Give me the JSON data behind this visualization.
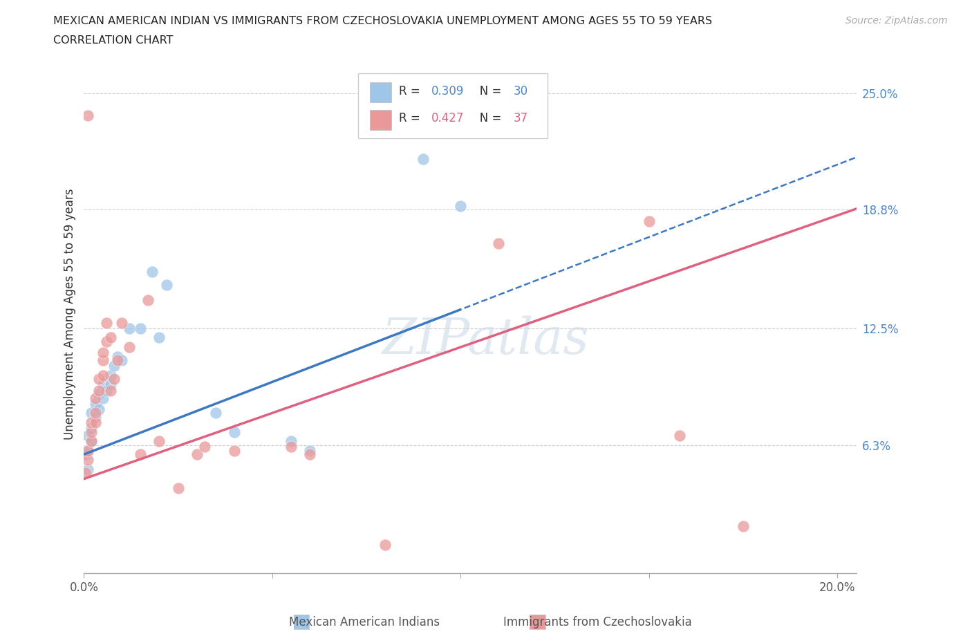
{
  "title_line1": "MEXICAN AMERICAN INDIAN VS IMMIGRANTS FROM CZECHOSLOVAKIA UNEMPLOYMENT AMONG AGES 55 TO 59 YEARS",
  "title_line2": "CORRELATION CHART",
  "source_text": "Source: ZipAtlas.com",
  "ylabel": "Unemployment Among Ages 55 to 59 years",
  "xlim": [
    0.0,
    0.205
  ],
  "ylim": [
    -0.005,
    0.27
  ],
  "ytick_positions": [
    0.063,
    0.125,
    0.188,
    0.25
  ],
  "ytick_labels": [
    "6.3%",
    "12.5%",
    "18.8%",
    "25.0%"
  ],
  "blue_color": "#9fc5e8",
  "pink_color": "#ea9999",
  "blue_line_color": "#3d78c3",
  "pink_line_color": "#e06080",
  "blue_R": 0.309,
  "blue_N": 30,
  "pink_R": 0.427,
  "pink_N": 37,
  "legend_label_blue": "Mexican American Indians",
  "legend_label_pink": "Immigrants from Czechoslovakia",
  "blue_x": [
    0.0005,
    0.001,
    0.001,
    0.001,
    0.002,
    0.002,
    0.002,
    0.003,
    0.003,
    0.004,
    0.004,
    0.005,
    0.005,
    0.006,
    0.007,
    0.007,
    0.008,
    0.009,
    0.01,
    0.012,
    0.015,
    0.018,
    0.02,
    0.022,
    0.035,
    0.04,
    0.055,
    0.06,
    0.09,
    0.1
  ],
  "blue_y": [
    0.058,
    0.05,
    0.06,
    0.068,
    0.065,
    0.072,
    0.08,
    0.078,
    0.085,
    0.082,
    0.09,
    0.088,
    0.095,
    0.092,
    0.095,
    0.1,
    0.105,
    0.11,
    0.108,
    0.125,
    0.125,
    0.155,
    0.12,
    0.148,
    0.08,
    0.07,
    0.065,
    0.06,
    0.215,
    0.19
  ],
  "pink_x": [
    0.0005,
    0.001,
    0.001,
    0.001,
    0.002,
    0.002,
    0.002,
    0.003,
    0.003,
    0.003,
    0.004,
    0.004,
    0.005,
    0.005,
    0.005,
    0.006,
    0.006,
    0.007,
    0.007,
    0.008,
    0.009,
    0.01,
    0.012,
    0.015,
    0.017,
    0.02,
    0.025,
    0.03,
    0.032,
    0.04,
    0.055,
    0.06,
    0.08,
    0.11,
    0.15,
    0.158,
    0.175
  ],
  "pink_y": [
    0.048,
    0.055,
    0.06,
    0.238,
    0.065,
    0.07,
    0.075,
    0.075,
    0.08,
    0.088,
    0.092,
    0.098,
    0.1,
    0.108,
    0.112,
    0.118,
    0.128,
    0.092,
    0.12,
    0.098,
    0.108,
    0.128,
    0.115,
    0.058,
    0.14,
    0.065,
    0.04,
    0.058,
    0.062,
    0.06,
    0.062,
    0.058,
    0.01,
    0.17,
    0.182,
    0.068,
    0.02
  ]
}
